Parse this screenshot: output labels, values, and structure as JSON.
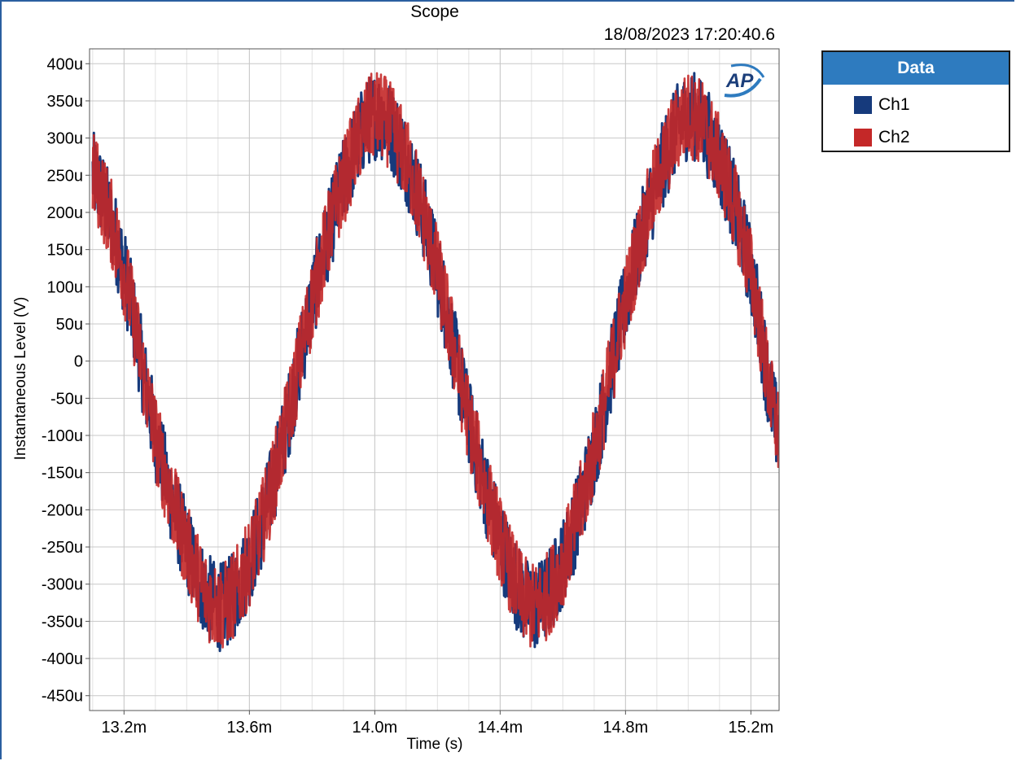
{
  "window": {
    "title": "Scope",
    "timestamp": "18/08/2023 17:20:40.6"
  },
  "legend": {
    "title": "Data",
    "items": [
      {
        "label": "Ch1",
        "color": "#163a7c"
      },
      {
        "label": "Ch2",
        "color": "#c42828"
      }
    ]
  },
  "logo": {
    "text": "AP",
    "name": "ap-logo"
  },
  "chart_data": {
    "type": "line",
    "title": "Scope",
    "xlabel": "Time (s)",
    "ylabel": "Instantaneous Level (V)",
    "x_ticks": [
      "13.2m",
      "13.6m",
      "14.0m",
      "14.4m",
      "14.8m",
      "15.2m"
    ],
    "x_tick_values": [
      0.0132,
      0.0136,
      0.014,
      0.0144,
      0.0148,
      0.0152
    ],
    "y_ticks": [
      "400u",
      "350u",
      "300u",
      "250u",
      "200u",
      "150u",
      "100u",
      "50u",
      "0",
      "-50u",
      "-100u",
      "-150u",
      "-200u",
      "-250u",
      "-300u",
      "-350u",
      "-400u",
      "-450u"
    ],
    "y_tick_values": [
      0.0004,
      0.00035,
      0.0003,
      0.00025,
      0.0002,
      0.00015,
      0.0001,
      5e-05,
      0,
      -5e-05,
      -0.0001,
      -0.00015,
      -0.0002,
      -0.00025,
      -0.0003,
      -0.00035,
      -0.0004,
      -0.00045
    ],
    "xlim": [
      0.01309,
      0.01529
    ],
    "ylim": [
      -0.00047,
      0.00042
    ],
    "grid": true,
    "legend_position": "right",
    "series": [
      {
        "name": "Ch1",
        "color": "#163a7c",
        "x": [
          0.0131,
          0.0132,
          0.0133,
          0.0134,
          0.0135,
          0.0136,
          0.0137,
          0.0138,
          0.0139,
          0.014,
          0.0141,
          0.0142,
          0.0143,
          0.0144,
          0.0145,
          0.0146,
          0.0147,
          0.0148,
          0.0149,
          0.015,
          0.0151,
          0.0152,
          0.01529
        ],
        "y": [
          0.00025,
          0.00012,
          -0.0001,
          -0.00025,
          -0.00033,
          -0.00027,
          -0.00012,
          8e-05,
          0.00024,
          0.00033,
          0.00027,
          0.00012,
          -8e-05,
          -0.00024,
          -0.00033,
          -0.00027,
          -0.00012,
          8e-05,
          0.00024,
          0.00033,
          0.00027,
          0.00012,
          -0.0001
        ],
        "noise_amplitude": 6e-05
      },
      {
        "name": "Ch2",
        "color": "#c42828",
        "x": [
          0.0131,
          0.0132,
          0.0133,
          0.0134,
          0.0135,
          0.0136,
          0.0137,
          0.0138,
          0.0139,
          0.014,
          0.0141,
          0.0142,
          0.0143,
          0.0144,
          0.0145,
          0.0146,
          0.0147,
          0.0148,
          0.0149,
          0.015,
          0.0151,
          0.0152,
          0.01529
        ],
        "y": [
          0.00025,
          0.00012,
          -0.0001,
          -0.00025,
          -0.00033,
          -0.00027,
          -0.00012,
          8e-05,
          0.00024,
          0.00033,
          0.00027,
          0.00012,
          -8e-05,
          -0.00024,
          -0.00033,
          -0.00027,
          -0.00012,
          8e-05,
          0.00024,
          0.00033,
          0.00027,
          0.00012,
          -0.0001
        ],
        "noise_amplitude": 6e-05
      }
    ]
  }
}
